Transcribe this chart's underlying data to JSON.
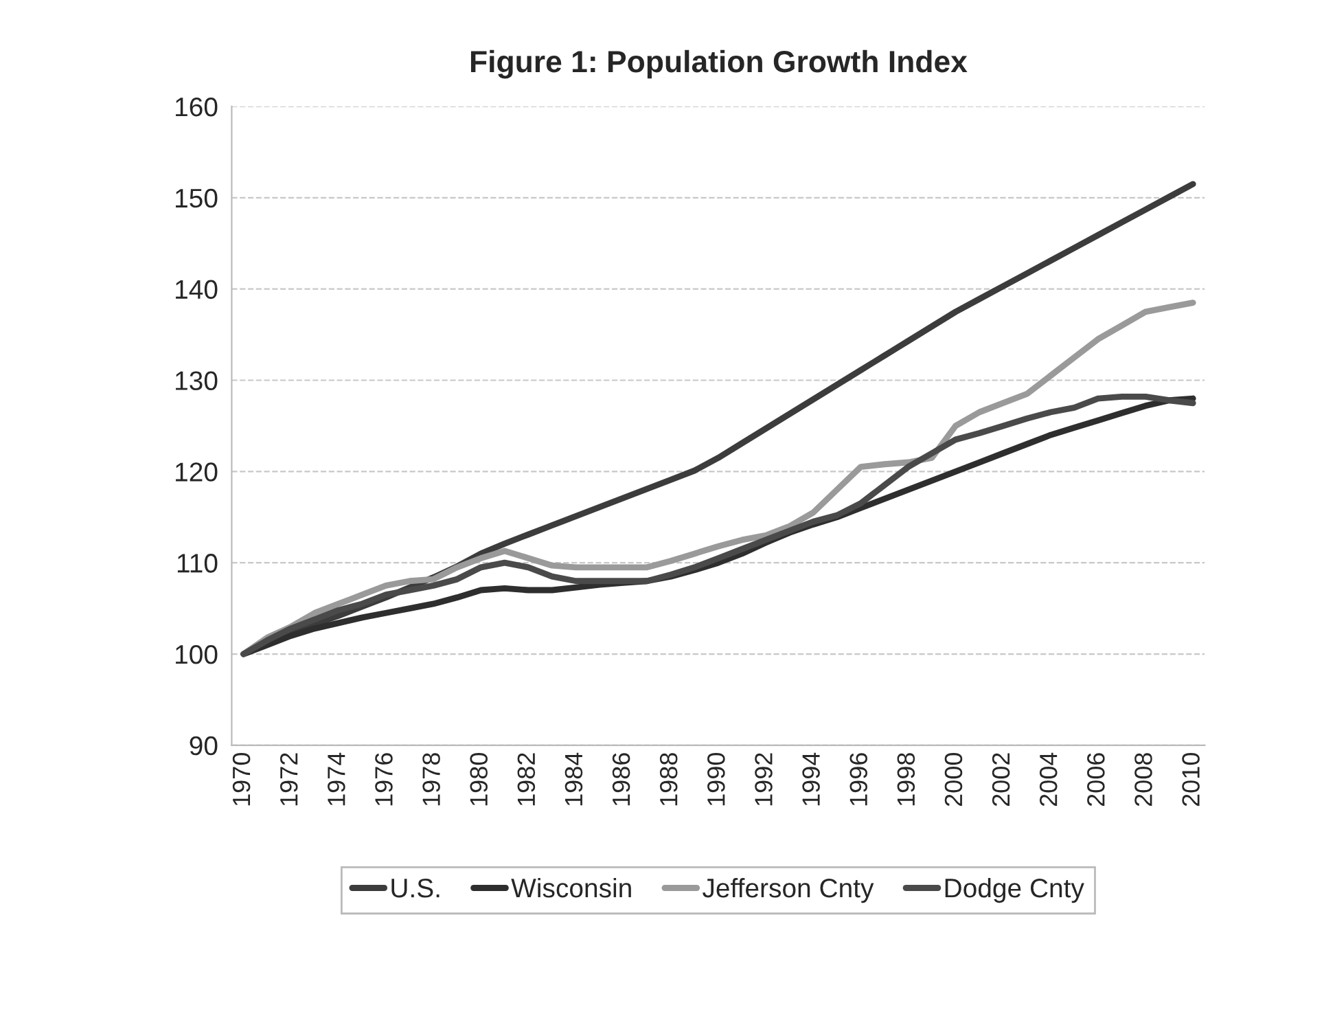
{
  "chart_data": {
    "type": "line",
    "title": "Figure 1: Population Growth Index",
    "categories": [
      "1970",
      null,
      "1972",
      null,
      "1974",
      null,
      "1976",
      null,
      "1978",
      null,
      "1980",
      null,
      "1982",
      null,
      "1984",
      null,
      "1986",
      null,
      "1988",
      null,
      "1990",
      null,
      "1992",
      null,
      "1994",
      null,
      "1996",
      null,
      "1998",
      null,
      "2000",
      null,
      "2002",
      null,
      "2004",
      null,
      "2006",
      null,
      "2008",
      null,
      "2010"
    ],
    "series": [
      {
        "name": "U.S.",
        "color": "#3c3c3c",
        "values": [
          100,
          101.1,
          102.2,
          103.3,
          104.2,
          105.2,
          106.2,
          107.3,
          108.4,
          109.6,
          111,
          112.1,
          113.1,
          114.1,
          115.1,
          116.1,
          117.1,
          118.1,
          119.1,
          120.1,
          121.5,
          123.1,
          124.7,
          126.3,
          127.9,
          129.5,
          131.1,
          132.7,
          134.3,
          135.9,
          137.5,
          138.9,
          140.3,
          141.7,
          143.1,
          144.5,
          145.9,
          147.3,
          148.7,
          150.1,
          151.5
        ]
      },
      {
        "name": "Wisconsin",
        "color": "#2e2e2e",
        "values": [
          100,
          101,
          102,
          102.8,
          103.4,
          104,
          104.5,
          105,
          105.5,
          106.2,
          107,
          107.2,
          107,
          107,
          107.3,
          107.6,
          107.8,
          108,
          108.5,
          109.2,
          110,
          111,
          112.2,
          113.3,
          114.2,
          115,
          116,
          117,
          118,
          119,
          120,
          121,
          122,
          123,
          124,
          124.8,
          125.6,
          126.4,
          127.2,
          127.8,
          128
        ]
      },
      {
        "name": "Jefferson Cnty",
        "color": "#9a9a9a",
        "values": [
          100,
          101.8,
          103,
          104.5,
          105.5,
          106.5,
          107.5,
          108,
          108.2,
          109.5,
          110.5,
          111.3,
          110.5,
          109.7,
          109.5,
          109.5,
          109.5,
          109.5,
          110.2,
          111,
          111.8,
          112.5,
          113,
          114,
          115.5,
          118,
          120.5,
          120.8,
          121,
          121.5,
          125,
          126.5,
          127.5,
          128.5,
          130.5,
          132.5,
          134.5,
          136,
          137.5,
          138,
          138.5
        ]
      },
      {
        "name": "Dodge Cnty",
        "color": "#4a4a4a",
        "values": [
          100,
          101.5,
          102.8,
          103.8,
          104.8,
          105.5,
          106.5,
          107,
          107.5,
          108.2,
          109.5,
          110,
          109.5,
          108.5,
          108,
          108,
          108,
          108,
          108.7,
          109.5,
          110.5,
          111.5,
          112.5,
          113.5,
          114.5,
          115.2,
          116.5,
          118.5,
          120.5,
          122,
          123.5,
          124.2,
          125,
          125.8,
          126.5,
          127,
          128,
          128.2,
          128.2,
          127.8,
          127.5
        ]
      }
    ],
    "ylim": [
      90,
      160
    ],
    "yticks": [
      90,
      100,
      110,
      120,
      130,
      140,
      150,
      160
    ],
    "grid": "y",
    "legend": "bottom",
    "marker": "none",
    "line_style": "solid"
  }
}
